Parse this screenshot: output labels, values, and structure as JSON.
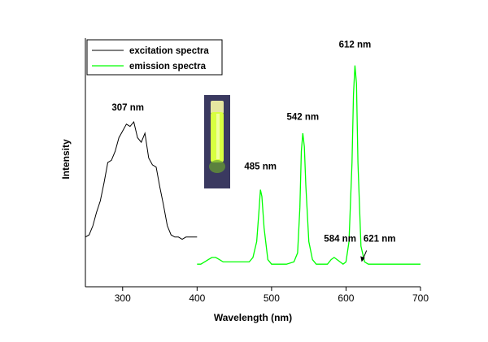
{
  "chart_data": {
    "type": "line",
    "xlabel": "Wavelength (nm)",
    "ylabel": "Intensity",
    "xlim": [
      250,
      700
    ],
    "ylim": [
      0,
      1
    ],
    "x_ticks": [
      300,
      400,
      500,
      600,
      700
    ],
    "x_tick_labels": [
      "300",
      "400",
      "500",
      "600",
      "700"
    ],
    "y_ticks_shown": false,
    "grid": false,
    "legend_position": "top-left",
    "series": [
      {
        "name": "excitation spectra",
        "color": "#000000",
        "x": [
          250,
          255,
          260,
          265,
          270,
          275,
          280,
          285,
          290,
          295,
          300,
          305,
          310,
          315,
          320,
          325,
          330,
          335,
          340,
          345,
          350,
          355,
          360,
          365,
          370,
          375,
          380,
          385,
          390,
          395,
          400
        ],
        "y": [
          0.22,
          0.23,
          0.27,
          0.33,
          0.38,
          0.46,
          0.55,
          0.56,
          0.6,
          0.66,
          0.69,
          0.72,
          0.71,
          0.73,
          0.66,
          0.64,
          0.68,
          0.57,
          0.54,
          0.53,
          0.44,
          0.36,
          0.27,
          0.23,
          0.22,
          0.22,
          0.21,
          0.22,
          0.22,
          0.22,
          0.22
        ]
      },
      {
        "name": "emission spectra",
        "color": "#00ff00",
        "x": [
          400,
          405,
          410,
          415,
          420,
          425,
          430,
          435,
          440,
          450,
          460,
          470,
          475,
          480,
          483,
          485,
          487,
          490,
          495,
          500,
          510,
          520,
          530,
          535,
          538,
          540,
          542,
          544,
          546,
          550,
          555,
          560,
          570,
          575,
          580,
          584,
          588,
          592,
          596,
          600,
          604,
          608,
          610,
          612,
          614,
          616,
          620,
          625,
          630,
          640,
          650,
          660,
          680,
          700
        ],
        "y": [
          0.1,
          0.1,
          0.11,
          0.12,
          0.13,
          0.13,
          0.12,
          0.11,
          0.11,
          0.11,
          0.11,
          0.11,
          0.13,
          0.2,
          0.33,
          0.43,
          0.4,
          0.26,
          0.12,
          0.1,
          0.1,
          0.1,
          0.11,
          0.15,
          0.35,
          0.6,
          0.68,
          0.62,
          0.45,
          0.2,
          0.12,
          0.1,
          0.1,
          0.1,
          0.12,
          0.13,
          0.12,
          0.11,
          0.1,
          0.11,
          0.2,
          0.55,
          0.85,
          0.98,
          0.9,
          0.55,
          0.18,
          0.11,
          0.1,
          0.1,
          0.1,
          0.1,
          0.1,
          0.1
        ]
      }
    ],
    "annotations": [
      {
        "text": "307 nm",
        "x": 307,
        "y": 0.78
      },
      {
        "text": "485 nm",
        "x": 485,
        "y": 0.52
      },
      {
        "text": "542 nm",
        "x": 542,
        "y": 0.74
      },
      {
        "text": "584 nm",
        "x": 592,
        "y": 0.2
      },
      {
        "text": "612 nm",
        "x": 612,
        "y": 1.06
      },
      {
        "text": "621 nm",
        "x": 645,
        "y": 0.2
      }
    ],
    "arrow_annotation": {
      "target_x": 621,
      "target_y": 0.11
    },
    "inset_photo": {
      "description_icon": "vial-photo",
      "colors": {
        "background": "#2a3a7a",
        "vial": "#d8ff40",
        "cap": "#e6e6a0"
      }
    }
  }
}
